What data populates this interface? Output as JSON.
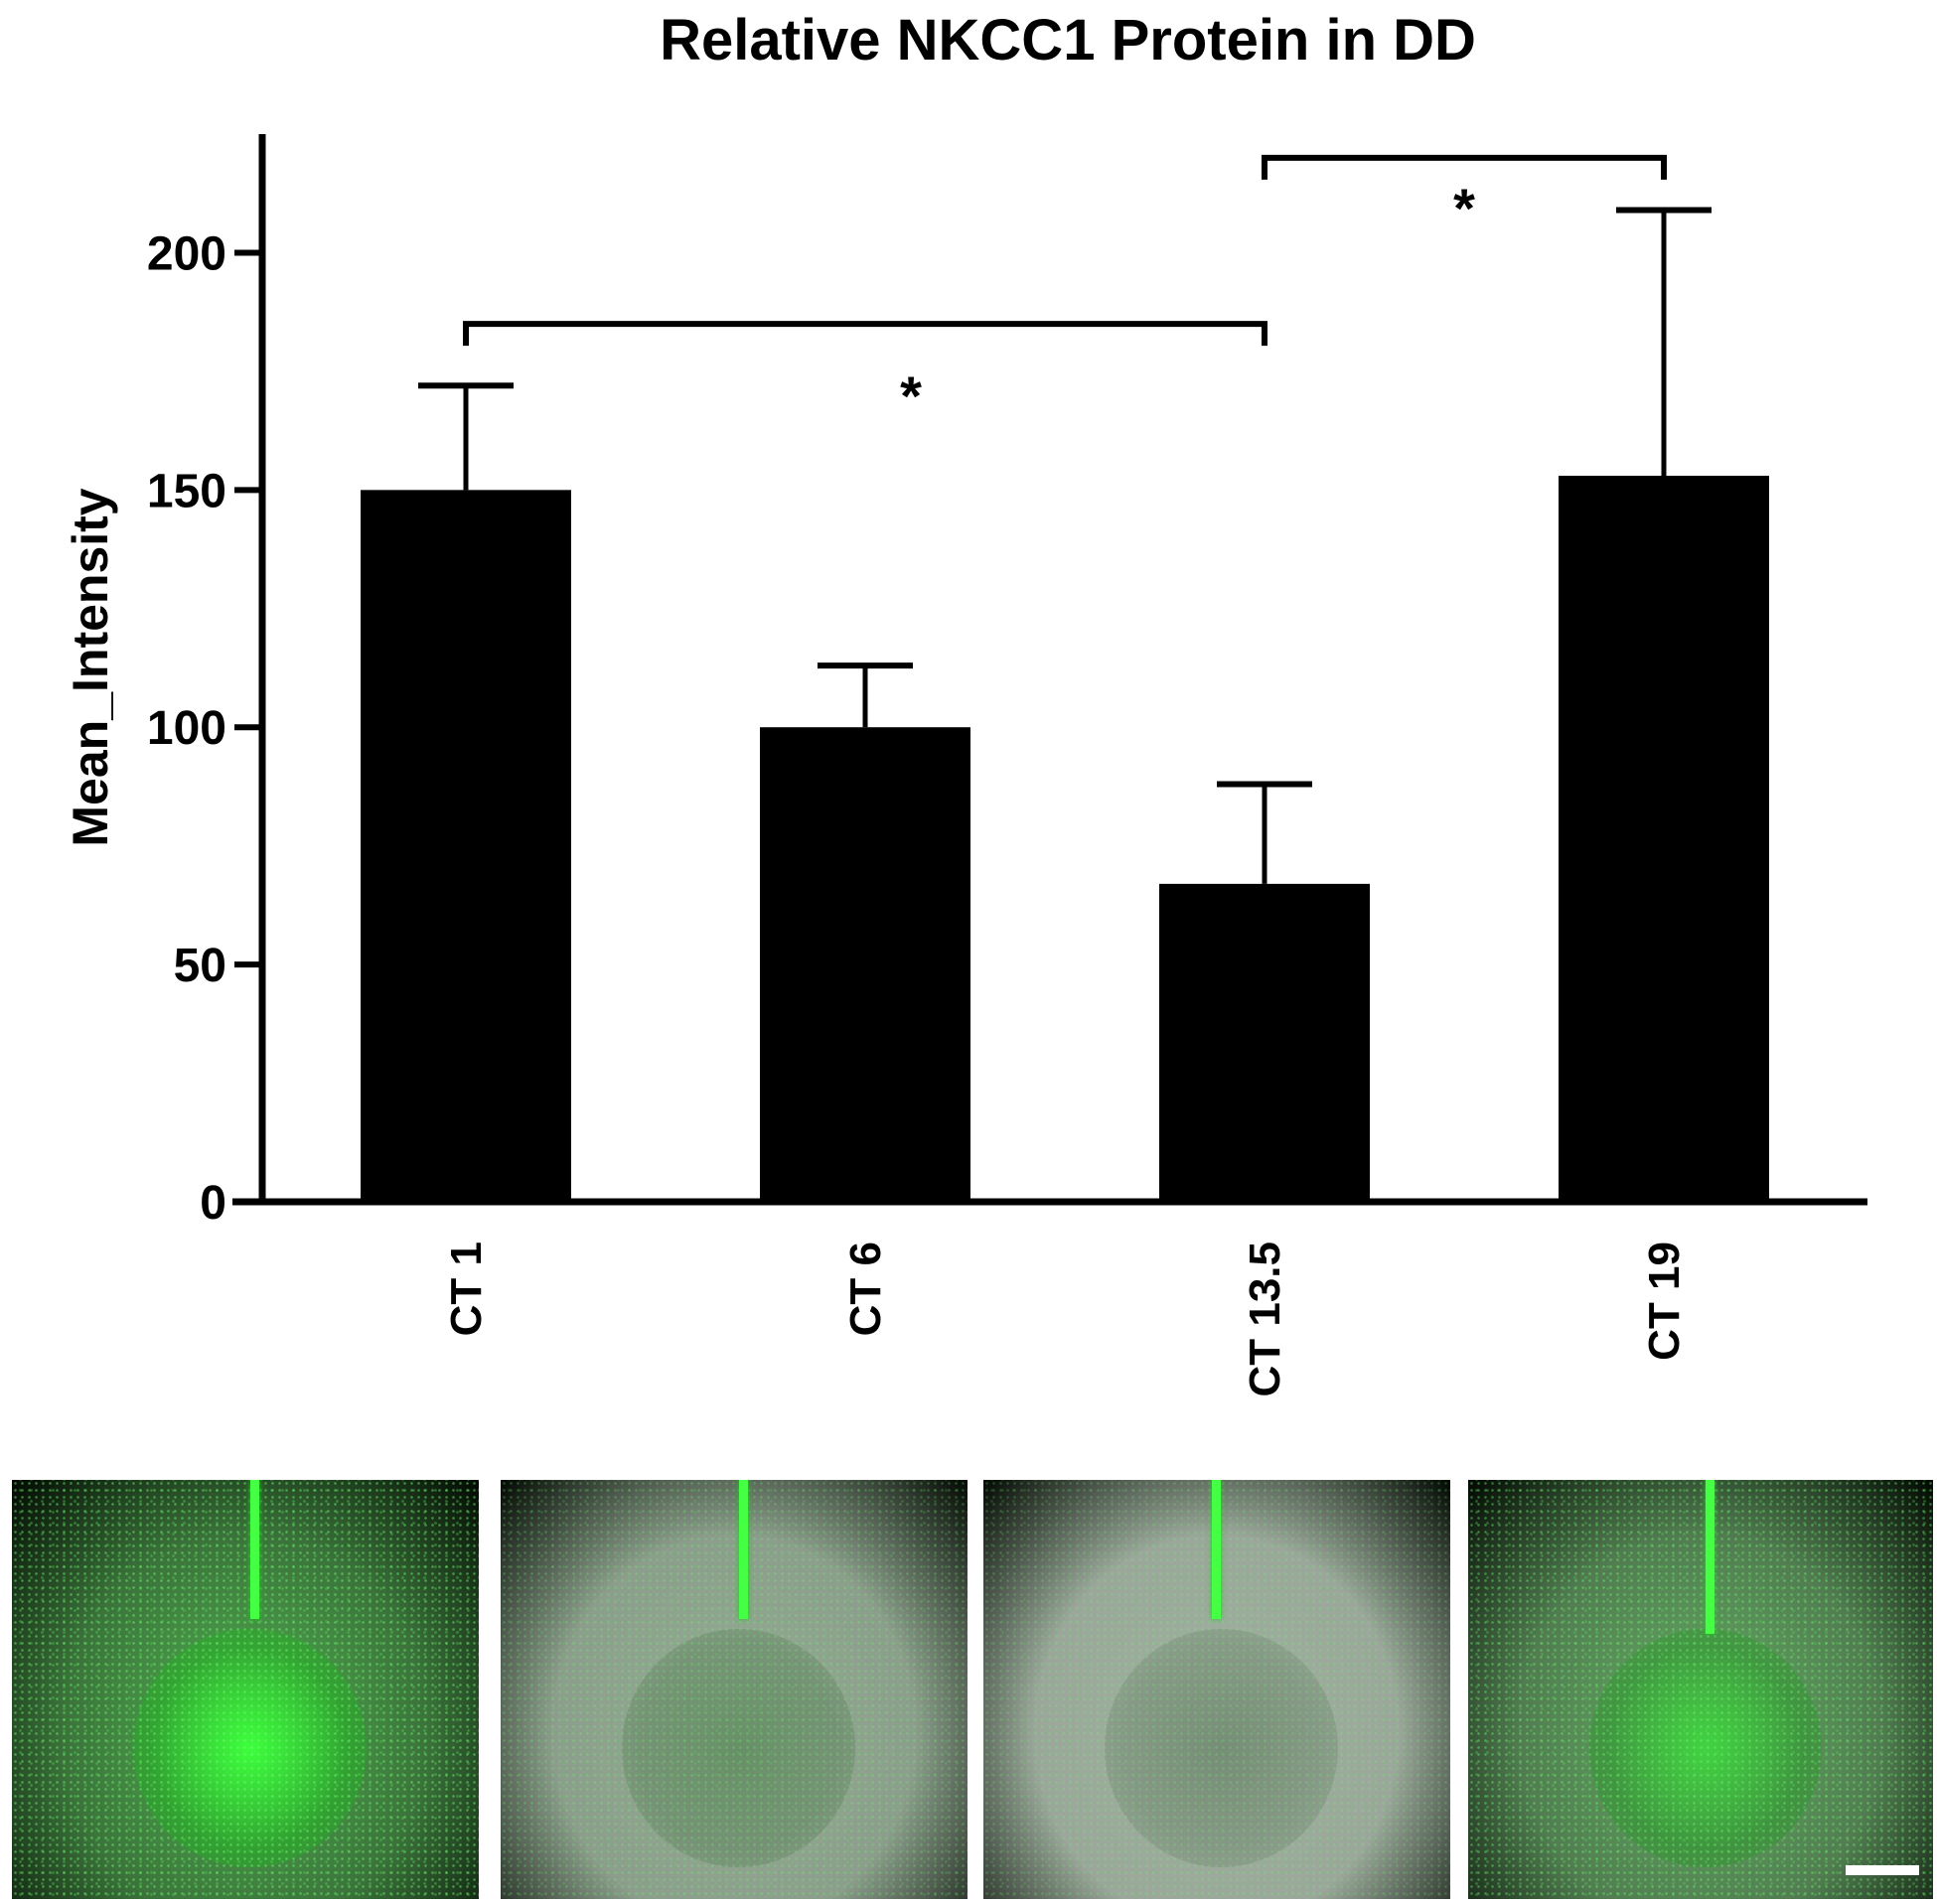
{
  "chart_data": {
    "type": "bar",
    "title": "Relative NKCC1 Protein in DD",
    "ylabel": "Mean_Intensity",
    "xlabel": "",
    "categories": [
      "CT 1",
      "CT 6",
      "CT 13.5",
      "CT 19"
    ],
    "values": [
      150,
      100,
      67,
      153
    ],
    "error_upper": [
      172,
      113,
      88,
      209
    ],
    "ylim": [
      0,
      225
    ],
    "yticks": [
      0,
      50,
      100,
      150,
      200
    ],
    "grid": false,
    "legend": "none",
    "bar_color": "#000000",
    "significance": [
      {
        "from": 0,
        "to": 2,
        "label": "*",
        "bracket_y": 185
      },
      {
        "from": 2,
        "to": 3,
        "label": "*",
        "bracket_y": 220
      }
    ]
  },
  "micrographs": {
    "count": 4,
    "stain_color": "#33dd33",
    "brightness": [
      1.0,
      0.45,
      0.35,
      0.85
    ]
  }
}
